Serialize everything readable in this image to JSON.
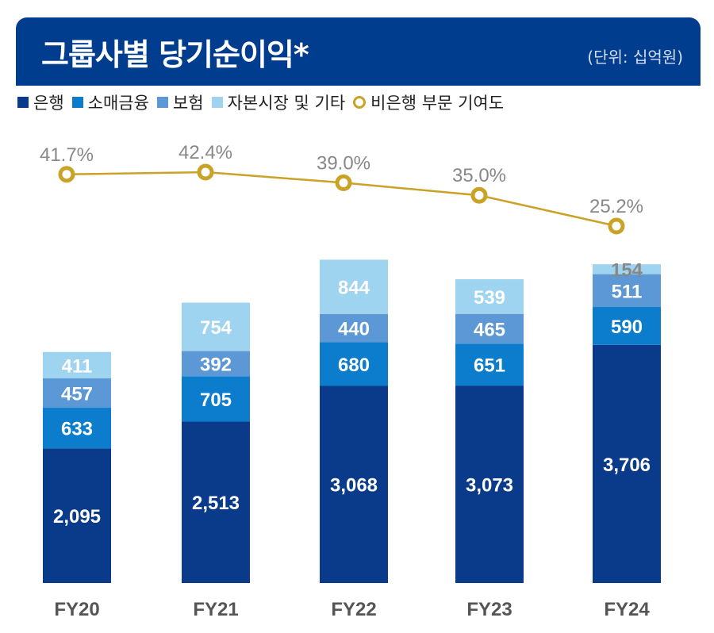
{
  "header": {
    "title": "그룹사별 당기순이익*",
    "unit": "(단위: 십억원)"
  },
  "chart_data": {
    "type": "bar",
    "stacked": true,
    "categories": [
      "FY20",
      "FY21",
      "FY22",
      "FY23",
      "FY24"
    ],
    "series": [
      {
        "name": "은행",
        "color": "#0a3a8a",
        "values": [
          2095,
          2513,
          3068,
          3073,
          3706
        ],
        "labels": [
          "2,095",
          "2,513",
          "3,068",
          "3,073",
          "3,706"
        ]
      },
      {
        "name": "소매금융",
        "color": "#0b7dcc",
        "values": [
          633,
          705,
          680,
          651,
          590
        ],
        "labels": [
          "633",
          "705",
          "680",
          "651",
          "590"
        ]
      },
      {
        "name": "보험",
        "color": "#5c98d6",
        "values": [
          457,
          392,
          440,
          465,
          511
        ],
        "labels": [
          "457",
          "392",
          "440",
          "465",
          "511"
        ]
      },
      {
        "name": "자본시장 및 기타",
        "color": "#9fd4f0",
        "values": [
          411,
          754,
          844,
          539,
          154
        ],
        "labels": [
          "411",
          "754",
          "844",
          "539",
          "154"
        ]
      }
    ],
    "line": {
      "name": "비은행 부문 기여도",
      "color": "#c9a227",
      "unit": "%",
      "values": [
        41.7,
        42.4,
        39.0,
        35.0,
        25.2
      ],
      "labels": [
        "41.7%",
        "42.4%",
        "39.0%",
        "35.0%",
        "25.2%"
      ]
    }
  }
}
